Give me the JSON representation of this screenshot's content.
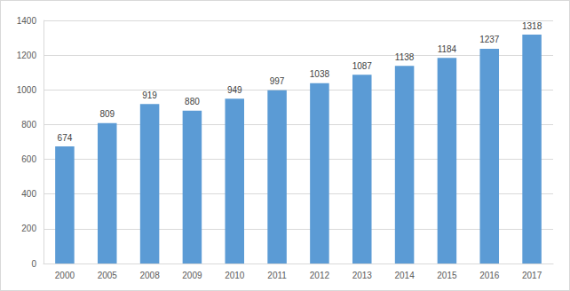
{
  "chart_data": {
    "type": "bar",
    "categories": [
      "2000",
      "2005",
      "2008",
      "2009",
      "2010",
      "2011",
      "2012",
      "2013",
      "2014",
      "2015",
      "2016",
      "2017"
    ],
    "values": [
      674,
      809,
      919,
      880,
      949,
      997,
      1038,
      1087,
      1138,
      1184,
      1237,
      1318
    ],
    "color": "#5b9bd5",
    "ylim": [
      0,
      1400
    ],
    "yticks": [
      0,
      200,
      400,
      600,
      800,
      1000,
      1200,
      1400
    ],
    "grid": true,
    "data_labels": true
  }
}
